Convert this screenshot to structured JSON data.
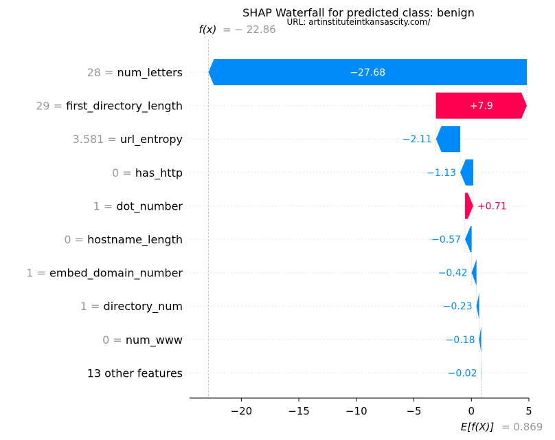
{
  "chart_data": {
    "type": "bar",
    "title": "SHAP Waterfall for predicted class: benign",
    "subtitle": "URL: artinstituteintkansascity.com/",
    "fx_label": "f(x)",
    "fx_value_text": "= − 22.86",
    "fx_value": -22.86,
    "base_label": "E[f(X)]",
    "base_value_text": "= 0.869",
    "base_value": 0.869,
    "xlim": [
      -24.5,
      5.0
    ],
    "xticks": [
      -20,
      -15,
      -10,
      -5,
      0,
      5
    ],
    "xtick_labels": [
      "−20",
      "−15",
      "−10",
      "−5",
      "0",
      "5"
    ],
    "features": [
      {
        "value_text": "28",
        "name": "num_letters",
        "shap": -27.68,
        "label": "−27.68"
      },
      {
        "value_text": "29",
        "name": "first_directory_length",
        "shap": 7.9,
        "label": "+7.9"
      },
      {
        "value_text": "3.581",
        "name": "url_entropy",
        "shap": -2.11,
        "label": "−2.11"
      },
      {
        "value_text": "0",
        "name": "has_http",
        "shap": -1.13,
        "label": "−1.13"
      },
      {
        "value_text": "1",
        "name": "dot_number",
        "shap": 0.71,
        "label": "+0.71"
      },
      {
        "value_text": "0",
        "name": "hostname_length",
        "shap": -0.57,
        "label": "−0.57"
      },
      {
        "value_text": "1",
        "name": "embed_domain_number",
        "shap": -0.42,
        "label": "−0.42"
      },
      {
        "value_text": "1",
        "name": "directory_num",
        "shap": -0.23,
        "label": "−0.23"
      },
      {
        "value_text": "0",
        "name": "num_www",
        "shap": -0.18,
        "label": "−0.18"
      },
      {
        "value_text": "",
        "name": "13 other features",
        "shap": -0.02,
        "label": "−0.02"
      }
    ],
    "colors": {
      "positive": "#ff0051",
      "negative": "#008bfb",
      "muted": "#999999",
      "grid": "#e6e6e6",
      "axis": "#000000"
    },
    "grid": true
  }
}
